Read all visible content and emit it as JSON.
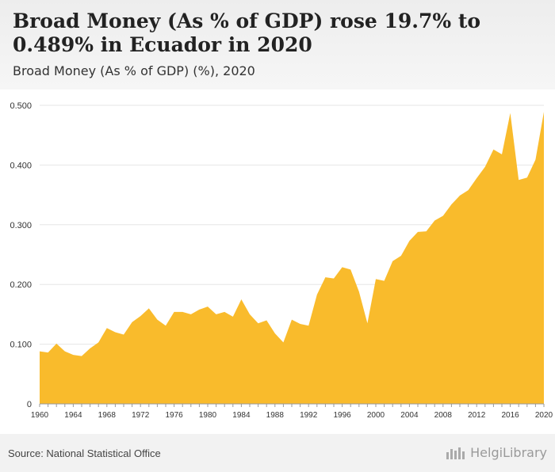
{
  "header": {
    "title": "Broad Money (As % of GDP) rose 19.7% to 0.489% in Ecuador in 2020",
    "subtitle": "Broad Money (As % of GDP) (%), 2020"
  },
  "footer": {
    "source": "Source: National Statistical Office",
    "brand": "HelgiLibrary"
  },
  "colors": {
    "area": "#f9bb2c",
    "grid": "#e6e6e6",
    "axis": "#999999",
    "tick_text": "#333333"
  },
  "chart_data": {
    "type": "area",
    "title": "Broad Money (As % of GDP) (%), 2020",
    "xlabel": "",
    "ylabel": "",
    "ylim": [
      0,
      0.5
    ],
    "yticks": [
      0,
      0.1,
      0.2,
      0.3,
      0.4,
      0.5
    ],
    "ytick_labels": [
      "0",
      "0.100",
      "0.200",
      "0.300",
      "0.400",
      "0.500"
    ],
    "xtick_labels": [
      "1960",
      "1964",
      "1968",
      "1972",
      "1976",
      "1980",
      "1984",
      "1988",
      "1992",
      "1996",
      "2000",
      "2004",
      "2008",
      "2012",
      "2016",
      "2020"
    ],
    "grid": true,
    "legend": "none",
    "x": [
      1960,
      1961,
      1962,
      1963,
      1964,
      1965,
      1966,
      1967,
      1968,
      1969,
      1970,
      1971,
      1972,
      1973,
      1974,
      1975,
      1976,
      1977,
      1978,
      1979,
      1980,
      1981,
      1982,
      1983,
      1984,
      1985,
      1986,
      1987,
      1988,
      1989,
      1990,
      1991,
      1992,
      1993,
      1994,
      1995,
      1996,
      1997,
      1998,
      1999,
      2000,
      2001,
      2002,
      2003,
      2004,
      2005,
      2006,
      2007,
      2008,
      2009,
      2010,
      2011,
      2012,
      2013,
      2014,
      2015,
      2016,
      2017,
      2018,
      2019,
      2020
    ],
    "values": [
      0.088,
      0.086,
      0.101,
      0.088,
      0.082,
      0.08,
      0.093,
      0.103,
      0.127,
      0.12,
      0.116,
      0.137,
      0.147,
      0.16,
      0.141,
      0.131,
      0.154,
      0.154,
      0.15,
      0.158,
      0.163,
      0.15,
      0.154,
      0.146,
      0.175,
      0.15,
      0.135,
      0.14,
      0.118,
      0.103,
      0.141,
      0.134,
      0.131,
      0.183,
      0.212,
      0.21,
      0.229,
      0.225,
      0.188,
      0.135,
      0.209,
      0.206,
      0.239,
      0.248,
      0.273,
      0.288,
      0.289,
      0.307,
      0.315,
      0.334,
      0.349,
      0.358,
      0.378,
      0.397,
      0.426,
      0.418,
      0.487,
      0.375,
      0.379,
      0.409,
      0.489
    ]
  }
}
